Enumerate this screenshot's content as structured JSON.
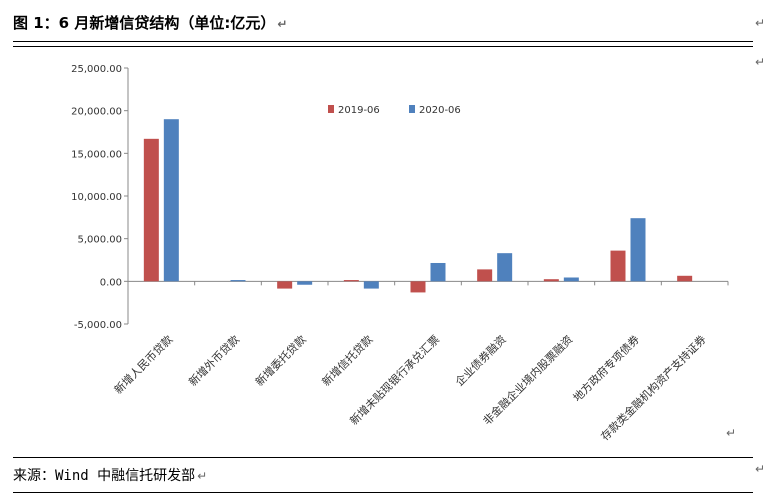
{
  "header": {
    "title": "图 1：6 月新增信贷结构（单位:亿元）",
    "return_mark": "↵"
  },
  "source": {
    "label": "来源：",
    "text": "Wind 中融信托研发部",
    "return_mark": "↵"
  },
  "edge_marks": [
    "↵",
    "↵",
    "↵",
    "↵"
  ],
  "chart_data": {
    "type": "bar",
    "title": "",
    "xlabel": "",
    "ylabel": "",
    "ylim": [
      -5000,
      25000
    ],
    "yticks": [
      25000,
      20000,
      15000,
      10000,
      5000,
      0,
      -5000
    ],
    "ytick_labels": [
      "25,000.00",
      "20,000.00",
      "15,000.00",
      "10,000.00",
      "5,000.00",
      "0.00",
      "-5,000.00"
    ],
    "grid": false,
    "legend_position": "top",
    "categories": [
      "新增人民币贷款",
      "新增外币贷款",
      "新增委托贷款",
      "新增信托贷款",
      "新增未贴现银行承兑汇票",
      "企业债券融资",
      "非金融企业境内股票融资",
      "地方政府专项债券",
      "存款类金融机构资产支持证券"
    ],
    "series": [
      {
        "name": "2019-06",
        "color": "#c0504d",
        "values": [
          16700,
          0,
          -850,
          150,
          -1300,
          1400,
          250,
          3600,
          650
        ]
      },
      {
        "name": "2020-06",
        "color": "#4f81bd",
        "values": [
          19000,
          150,
          -400,
          -850,
          2150,
          3300,
          450,
          7400,
          0
        ]
      }
    ]
  }
}
